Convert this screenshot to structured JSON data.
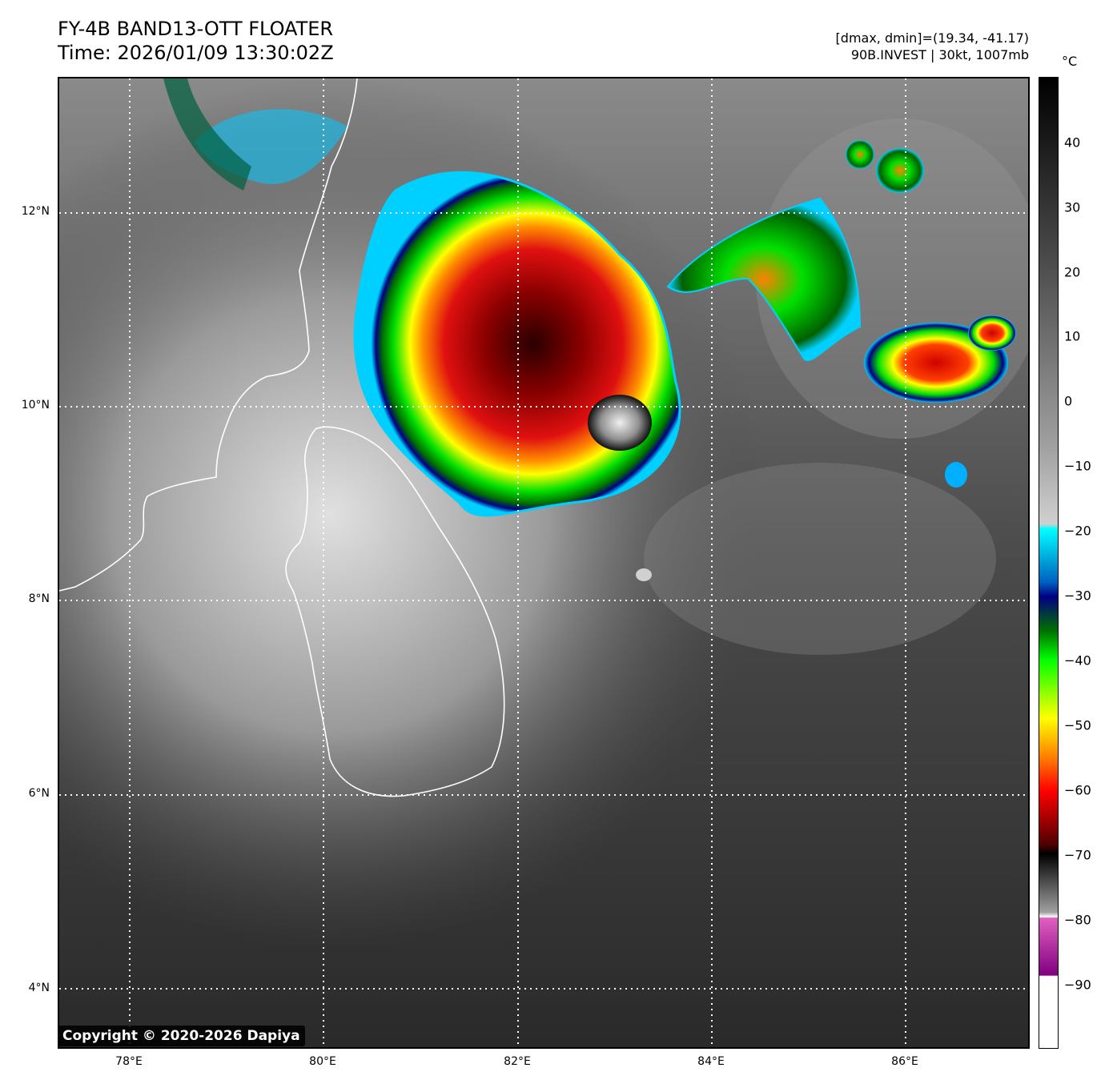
{
  "header": {
    "title_line1": "FY-4B BAND13-OTT FLOATER",
    "title_line2": "Time: 2026/01/09 13:30:02Z",
    "meta_line1": "[dmax, dmin]=(19.34, -41.17)",
    "meta_line2": "90B.INVEST | 30kt, 1007mb"
  },
  "map": {
    "lat_labels": [
      "12°N",
      "10°N",
      "8°N",
      "6°N",
      "4°N"
    ],
    "lon_labels": [
      "78°E",
      "80°E",
      "82°E",
      "84°E",
      "86°E"
    ],
    "copyright": "Copyright © 2020-2026 Dapiya",
    "gridlines": true,
    "coastline_color": "#ffffff"
  },
  "colorbar": {
    "unit": "°C",
    "ticks": [
      "40",
      "30",
      "20",
      "10",
      "0",
      "−10",
      "−20",
      "−30",
      "−40",
      "−50",
      "−60",
      "−70",
      "−80",
      "−90"
    ]
  }
}
